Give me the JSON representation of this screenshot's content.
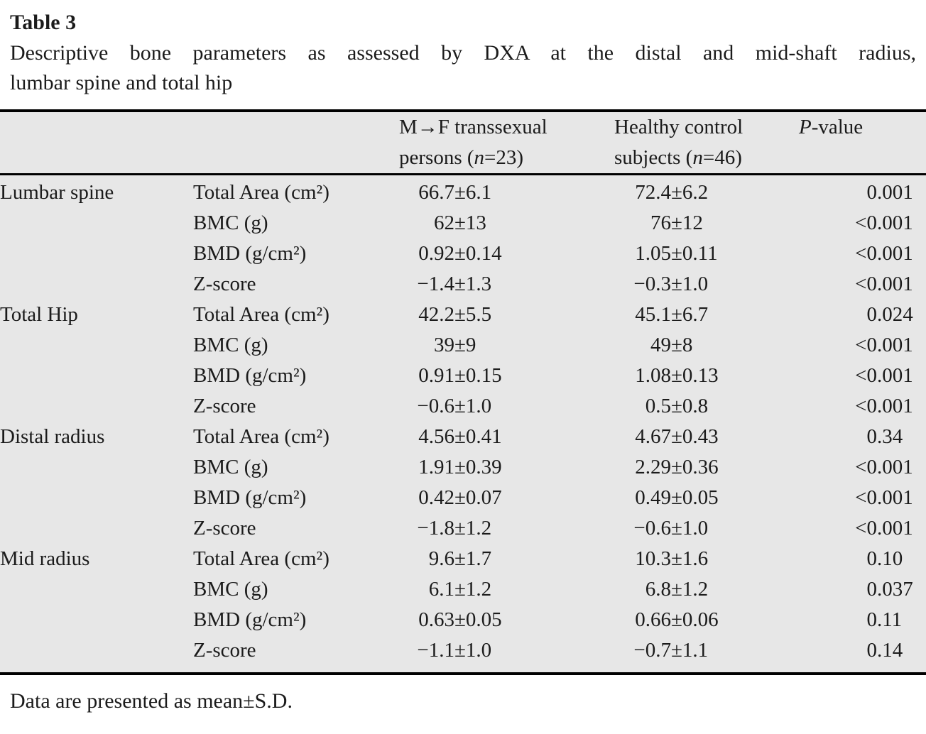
{
  "title": "Table 3",
  "caption": {
    "line1": "Descriptive bone parameters as assessed by DXA at the distal and mid-shaft radius,",
    "line2": "lumbar spine and total hip"
  },
  "header": {
    "group_mf": {
      "line1": "M→F transsexual",
      "line2_pre": "persons (",
      "n": "n",
      "line2_post": "=23)"
    },
    "group_control": {
      "line1": "Healthy control",
      "line2_pre": "subjects (",
      "n": "n",
      "line2_post": "=46)"
    },
    "pvalue": {
      "italic": "P",
      "rest": "-value"
    }
  },
  "sections": [
    {
      "site": "Lumbar spine",
      "rows": [
        {
          "param": "Total Area (cm²)",
          "mf": "66.7±6.1",
          "control": "72.4±6.2",
          "p": "0.001"
        },
        {
          "param": "BMC (g)",
          "mf": "62±13",
          "control": "76±12",
          "p": "<0.001"
        },
        {
          "param": "BMD (g/cm²)",
          "mf": "0.92±0.14",
          "control": "1.05±0.11",
          "p": "<0.001"
        },
        {
          "param": "Z-score",
          "mf": "−1.4±1.3",
          "control": "−0.3±1.0",
          "p": "<0.001"
        }
      ]
    },
    {
      "site": "Total Hip",
      "rows": [
        {
          "param": "Total Area (cm²)",
          "mf": "42.2±5.5",
          "control": "45.1±6.7",
          "p": "0.024"
        },
        {
          "param": "BMC (g)",
          "mf": "39±9",
          "control": "49±8",
          "p": "<0.001"
        },
        {
          "param": "BMD (g/cm²)",
          "mf": "0.91±0.15",
          "control": "1.08±0.13",
          "p": "<0.001"
        },
        {
          "param": "Z-score",
          "mf": "−0.6±1.0",
          "control": "0.5±0.8",
          "p": "<0.001"
        }
      ]
    },
    {
      "site": "Distal radius",
      "rows": [
        {
          "param": "Total Area (cm²)",
          "mf": "4.56±0.41",
          "control": "4.67±0.43",
          "p": "0.34"
        },
        {
          "param": "BMC (g)",
          "mf": "1.91±0.39",
          "control": "2.29±0.36",
          "p": "<0.001"
        },
        {
          "param": "BMD (g/cm²)",
          "mf": "0.42±0.07",
          "control": "0.49±0.05",
          "p": "<0.001"
        },
        {
          "param": "Z-score",
          "mf": "−1.8±1.2",
          "control": "−0.6±1.0",
          "p": "<0.001"
        }
      ]
    },
    {
      "site": "Mid radius",
      "rows": [
        {
          "param": "Total Area (cm²)",
          "mf": "9.6±1.7",
          "control": "10.3±1.6",
          "p": "0.10"
        },
        {
          "param": "BMC (g)",
          "mf": "6.1±1.2",
          "control": "6.8±1.2",
          "p": "0.037"
        },
        {
          "param": "BMD (g/cm²)",
          "mf": "0.63±0.05",
          "control": "0.66±0.06",
          "p": "0.11"
        },
        {
          "param": "Z-score",
          "mf": "−1.1±1.0",
          "control": "−0.7±1.1",
          "p": "0.14"
        }
      ]
    }
  ],
  "footnote": "Data are presented as mean±S.D.",
  "colors": {
    "table_background": "#e7e7e7",
    "rule": "#000000",
    "text": "#1b1b1b"
  }
}
